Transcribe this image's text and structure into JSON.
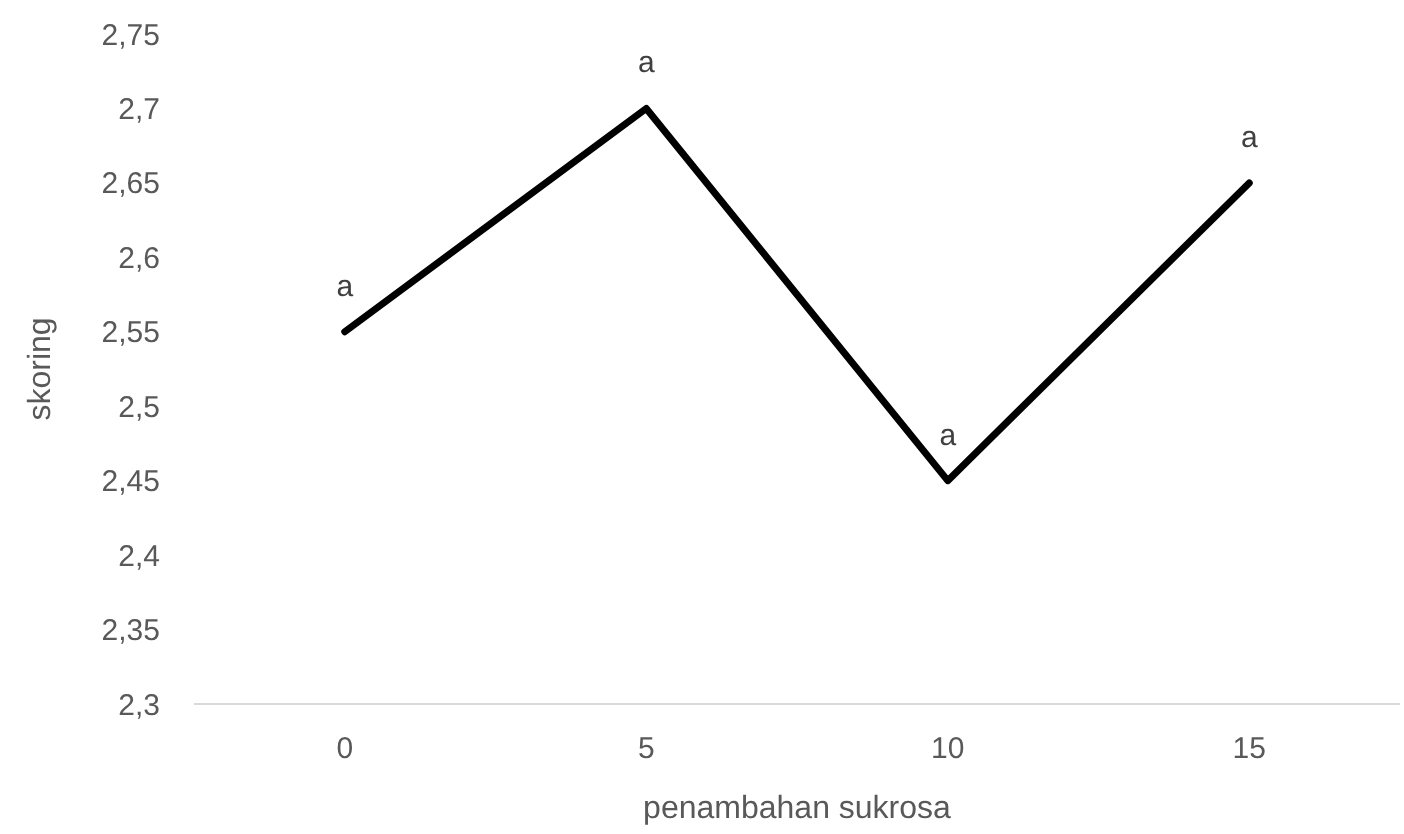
{
  "chart_data": {
    "type": "line",
    "xlabel": "penambahan sukrosa",
    "ylabel": "skoring",
    "categories": [
      "0",
      "5",
      "10",
      "15"
    ],
    "series": [
      {
        "color": "#000000",
        "values": [
          2.55,
          2.7,
          2.45,
          2.65
        ]
      }
    ],
    "ylim": [
      2.3,
      2.75
    ],
    "yticks": [
      {
        "value": 2.3,
        "label": "2,3"
      },
      {
        "value": 2.35,
        "label": "2,35"
      },
      {
        "value": 2.4,
        "label": "2,4"
      },
      {
        "value": 2.45,
        "label": "2,45"
      },
      {
        "value": 2.5,
        "label": "2,5"
      },
      {
        "value": 2.55,
        "label": "2,55"
      },
      {
        "value": 2.6,
        "label": "2,6"
      },
      {
        "value": 2.65,
        "label": "2,65"
      },
      {
        "value": 2.7,
        "label": "2,7"
      },
      {
        "value": 2.75,
        "label": "2,75"
      }
    ],
    "annotations": [
      {
        "text": "a",
        "x": "0",
        "y": 2.55
      },
      {
        "text": "a",
        "x": "5",
        "y": 2.7
      },
      {
        "text": "a",
        "x": "10",
        "y": 2.45
      },
      {
        "text": "a",
        "x": "15",
        "y": 2.65
      }
    ],
    "marker": "none",
    "line_style": "solid"
  }
}
